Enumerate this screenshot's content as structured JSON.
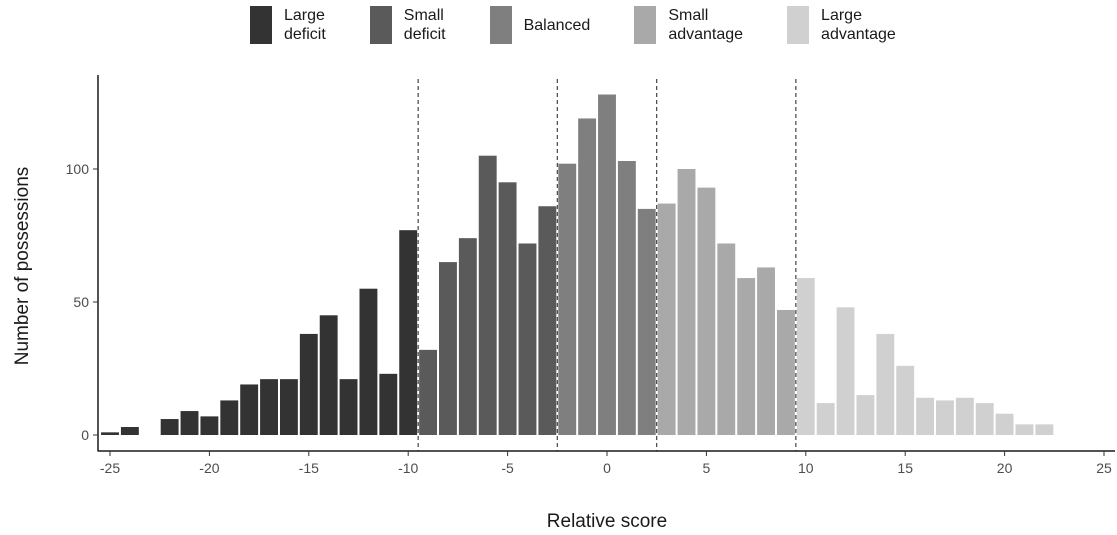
{
  "chart_data": {
    "type": "bar",
    "xlabel": "Relative score",
    "ylabel": "Number of possessions",
    "xlim": [
      -25.5,
      25.5
    ],
    "ylim": [
      0,
      130
    ],
    "x_ticks": [
      -25,
      -20,
      -15,
      -10,
      -5,
      0,
      5,
      10,
      15,
      20,
      25
    ],
    "y_ticks": [
      0,
      50,
      100
    ],
    "thresholds": [
      -9.5,
      -2.5,
      2.5,
      9.5
    ],
    "grid": false,
    "legend_position": "top",
    "categories": [
      {
        "name": "Large\ndeficit",
        "color": "#333333"
      },
      {
        "name": "Small\ndeficit",
        "color": "#5a5a5a"
      },
      {
        "name": "Balanced",
        "color": "#7f7f7f"
      },
      {
        "name": "Small\nadvantage",
        "color": "#a9a9a9"
      },
      {
        "name": "Large\nadvantage",
        "color": "#d0d0d0"
      }
    ],
    "bars": [
      {
        "x": -25,
        "y": 1,
        "cat": 0
      },
      {
        "x": -24,
        "y": 3,
        "cat": 0
      },
      {
        "x": -22,
        "y": 6,
        "cat": 0
      },
      {
        "x": -21,
        "y": 9,
        "cat": 0
      },
      {
        "x": -20,
        "y": 7,
        "cat": 0
      },
      {
        "x": -19,
        "y": 13,
        "cat": 0
      },
      {
        "x": -18,
        "y": 19,
        "cat": 0
      },
      {
        "x": -17,
        "y": 21,
        "cat": 0
      },
      {
        "x": -16,
        "y": 21,
        "cat": 0
      },
      {
        "x": -15,
        "y": 38,
        "cat": 0
      },
      {
        "x": -14,
        "y": 45,
        "cat": 0
      },
      {
        "x": -13,
        "y": 21,
        "cat": 0
      },
      {
        "x": -12,
        "y": 55,
        "cat": 0
      },
      {
        "x": -11,
        "y": 23,
        "cat": 0
      },
      {
        "x": -10,
        "y": 77,
        "cat": 0
      },
      {
        "x": -9,
        "y": 32,
        "cat": 1
      },
      {
        "x": -8,
        "y": 65,
        "cat": 1
      },
      {
        "x": -7,
        "y": 74,
        "cat": 1
      },
      {
        "x": -6,
        "y": 105,
        "cat": 1
      },
      {
        "x": -5,
        "y": 95,
        "cat": 1
      },
      {
        "x": -4,
        "y": 72,
        "cat": 1
      },
      {
        "x": -3,
        "y": 86,
        "cat": 1
      },
      {
        "x": -2,
        "y": 102,
        "cat": 2
      },
      {
        "x": -1,
        "y": 119,
        "cat": 2
      },
      {
        "x": 0,
        "y": 128,
        "cat": 2
      },
      {
        "x": 1,
        "y": 103,
        "cat": 2
      },
      {
        "x": 2,
        "y": 85,
        "cat": 2
      },
      {
        "x": 3,
        "y": 87,
        "cat": 3
      },
      {
        "x": 4,
        "y": 100,
        "cat": 3
      },
      {
        "x": 5,
        "y": 93,
        "cat": 3
      },
      {
        "x": 6,
        "y": 72,
        "cat": 3
      },
      {
        "x": 7,
        "y": 59,
        "cat": 3
      },
      {
        "x": 8,
        "y": 63,
        "cat": 3
      },
      {
        "x": 9,
        "y": 47,
        "cat": 3
      },
      {
        "x": 10,
        "y": 59,
        "cat": 4
      },
      {
        "x": 11,
        "y": 12,
        "cat": 4
      },
      {
        "x": 12,
        "y": 48,
        "cat": 4
      },
      {
        "x": 13,
        "y": 15,
        "cat": 4
      },
      {
        "x": 14,
        "y": 38,
        "cat": 4
      },
      {
        "x": 15,
        "y": 26,
        "cat": 4
      },
      {
        "x": 16,
        "y": 14,
        "cat": 4
      },
      {
        "x": 17,
        "y": 13,
        "cat": 4
      },
      {
        "x": 18,
        "y": 14,
        "cat": 4
      },
      {
        "x": 19,
        "y": 12,
        "cat": 4
      },
      {
        "x": 20,
        "y": 8,
        "cat": 4
      },
      {
        "x": 21,
        "y": 4,
        "cat": 4
      },
      {
        "x": 22,
        "y": 4,
        "cat": 4
      }
    ]
  }
}
